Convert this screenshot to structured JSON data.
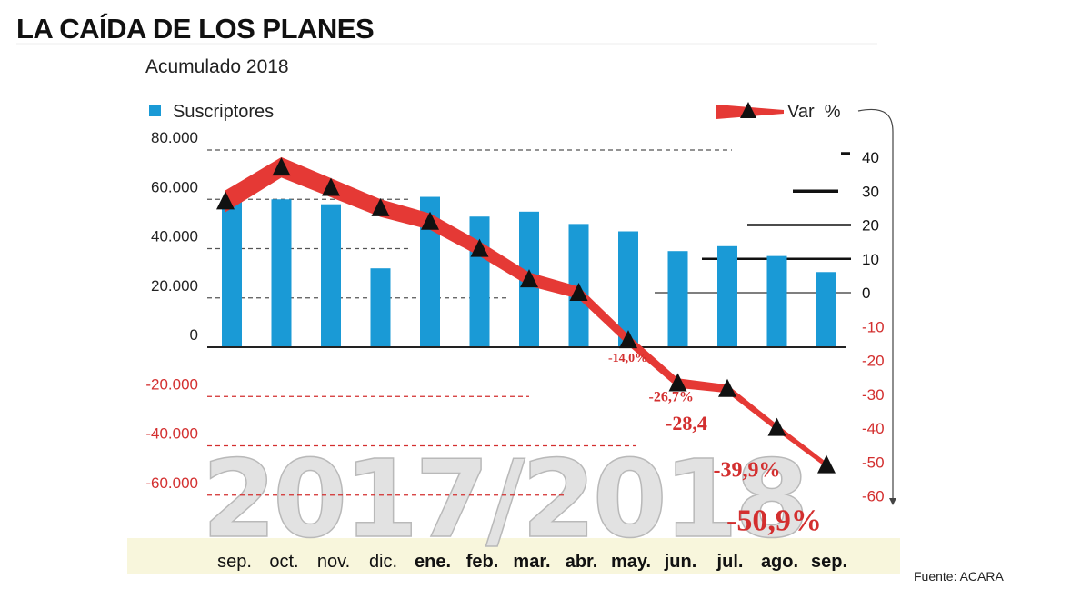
{
  "title": "LA CAÍDA DE LOS PLANES",
  "subtitle": "Acumulado 2018",
  "source": "Fuente: ACARA",
  "watermark": "2017/2018",
  "chart_data": {
    "type": "bar",
    "categories": [
      "sep.",
      "oct.",
      "nov.",
      "dic.",
      "ene.",
      "feb.",
      "mar.",
      "abr.",
      "may.",
      "jun.",
      "jul.",
      "ago.",
      "sep."
    ],
    "series": [
      {
        "name": "Suscriptores",
        "type": "bar",
        "axis": "left",
        "color": "#1a9ad6",
        "values": [
          60000,
          60000,
          58000,
          32000,
          61000,
          53000,
          55000,
          50000,
          47000,
          39000,
          41000,
          37000,
          30500
        ]
      },
      {
        "name": "Var %",
        "type": "line",
        "axis": "right",
        "color": "#e53935",
        "values": [
          27,
          37,
          31,
          25,
          21,
          13,
          4,
          0,
          -14.0,
          -26.7,
          -28.4,
          -39.9,
          -50.9
        ],
        "labels": [
          "",
          "",
          "",
          "",
          "",
          "",
          "",
          "",
          "-14,0%",
          "-26,7%",
          "-28,4",
          "-39,9%",
          "-50,9%"
        ]
      }
    ],
    "left_axis": {
      "ylim": [
        -60000,
        80000
      ],
      "ticks": [
        80000,
        60000,
        40000,
        20000,
        0,
        -20000,
        -40000,
        -60000
      ],
      "tick_labels": [
        "80.000",
        "60.000",
        "40.000",
        "20.000",
        "0",
        "-20.000",
        "-40.000",
        "-60.000"
      ]
    },
    "right_axis": {
      "ylim": [
        -60,
        40
      ],
      "ticks": [
        40,
        30,
        20,
        10,
        0,
        -10,
        -20,
        -30,
        -40,
        -50,
        -60
      ],
      "tick_labels": [
        "40",
        "30",
        "20",
        "10",
        "0",
        "-10",
        "-20",
        "-30",
        "-40",
        "-50",
        "-60"
      ]
    },
    "legend": [
      "Suscriptores",
      "Var  %"
    ],
    "colors": {
      "bar": "#1a9ad6",
      "line": "#e53935",
      "negative_text": "#d32f2f",
      "axis_band": "#f8f6dc"
    }
  }
}
